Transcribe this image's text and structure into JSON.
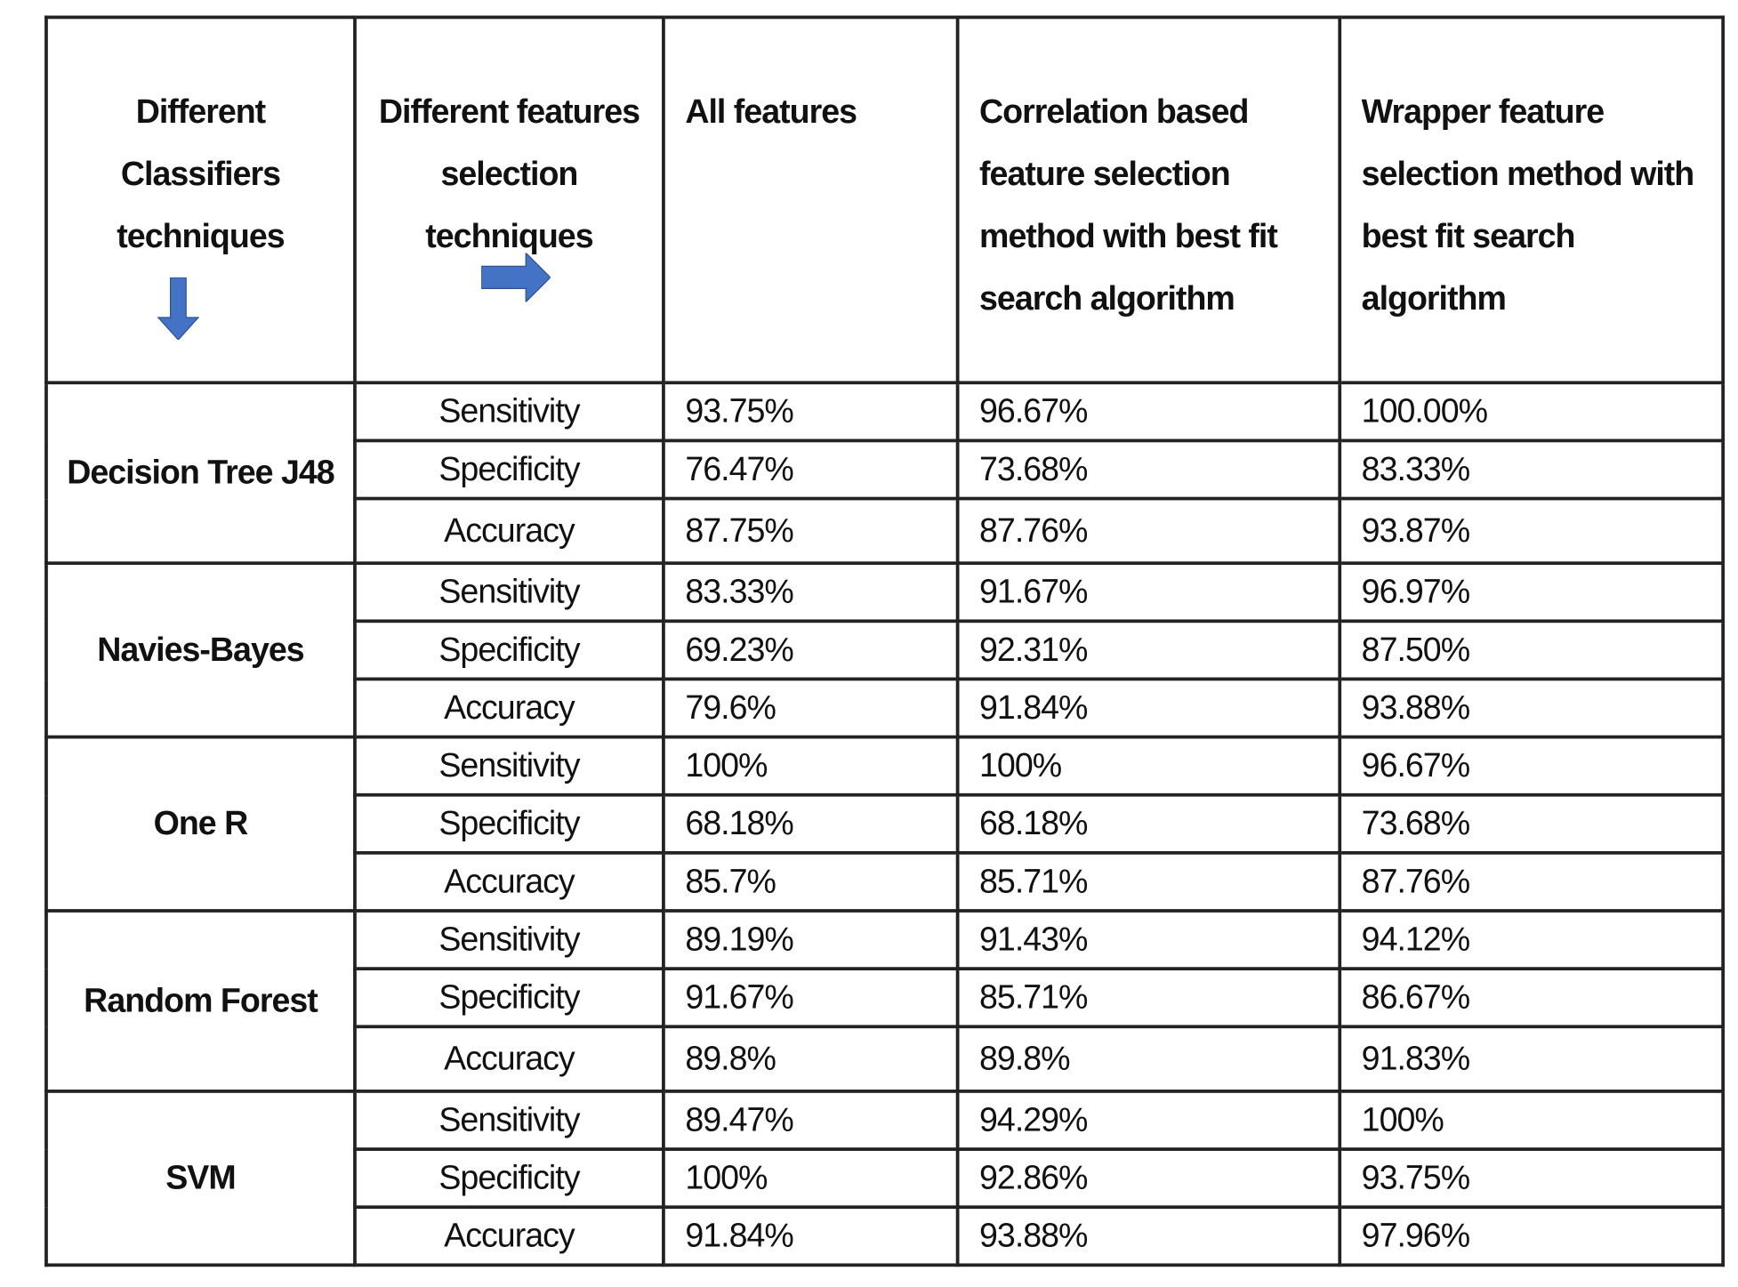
{
  "headers": {
    "classifiers": "Different Classifiers techniques",
    "feature_selection": "Different features selection techniques",
    "all_features": "All features",
    "correlation": "Correlation based feature selection method with best fit search algorithm",
    "wrapper": "Wrapper feature selection method with best fit search algorithm"
  },
  "icons": {
    "down": "arrow-down-icon",
    "right": "arrow-right-icon",
    "arrow_color": "#4472C4"
  },
  "groups": [
    {
      "classifier": "Decision Tree J48",
      "rows": [
        {
          "metric": "Sensitivity",
          "all": "93.75%",
          "corr": "96.67%",
          "wrap": "100.00%"
        },
        {
          "metric": "Specificity",
          "all": "76.47%",
          "corr": "73.68%",
          "wrap": "83.33%"
        },
        {
          "metric": "Accuracy",
          "all": "87.75%",
          "corr": "87.76%",
          "wrap": "93.87%"
        }
      ]
    },
    {
      "classifier": "Navies-Bayes",
      "rows": [
        {
          "metric": "Sensitivity",
          "all": "83.33%",
          "corr": "91.67%",
          "wrap": "96.97%"
        },
        {
          "metric": "Specificity",
          "all": "69.23%",
          "corr": "92.31%",
          "wrap": "87.50%"
        },
        {
          "metric": "Accuracy",
          "all": "79.6%",
          "corr": "91.84%",
          "wrap": "93.88%"
        }
      ]
    },
    {
      "classifier": "One R",
      "rows": [
        {
          "metric": "Sensitivity",
          "all": "100%",
          "corr": "100%",
          "wrap": "96.67%"
        },
        {
          "metric": "Specificity",
          "all": "68.18%",
          "corr": "68.18%",
          "wrap": "73.68%"
        },
        {
          "metric": "Accuracy",
          "all": "85.7%",
          "corr": "85.71%",
          "wrap": "87.76%"
        }
      ]
    },
    {
      "classifier": "Random Forest",
      "rows": [
        {
          "metric": "Sensitivity",
          "all": "89.19%",
          "corr": "91.43%",
          "wrap": "94.12%"
        },
        {
          "metric": "Specificity",
          "all": "91.67%",
          "corr": "85.71%",
          "wrap": "86.67%"
        },
        {
          "metric": "Accuracy",
          "all": "89.8%",
          "corr": "89.8%",
          "wrap": "91.83%"
        }
      ]
    },
    {
      "classifier": "SVM",
      "rows": [
        {
          "metric": "Sensitivity",
          "all": "89.47%",
          "corr": "94.29%",
          "wrap": "100%"
        },
        {
          "metric": "Specificity",
          "all": "100%",
          "corr": "92.86%",
          "wrap": "93.75%"
        },
        {
          "metric": "Accuracy",
          "all": "91.84%",
          "corr": "93.88%",
          "wrap": "97.96%"
        }
      ]
    }
  ]
}
